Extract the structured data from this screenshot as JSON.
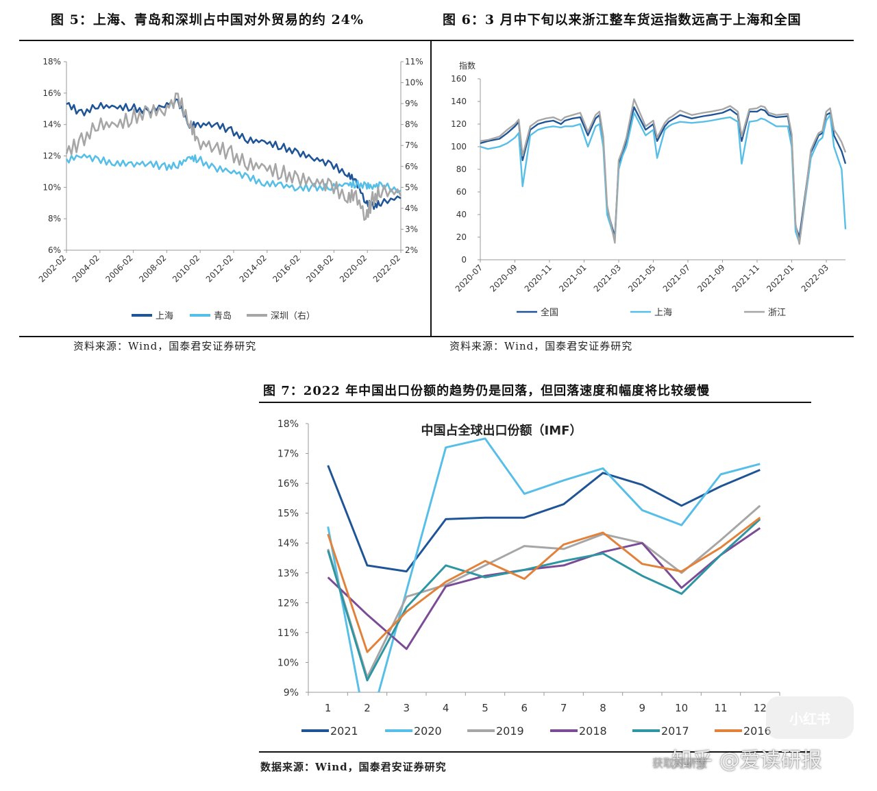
{
  "fig5": {
    "title": "图 5：上海、青岛和深圳占中国对外贸易的约 24%",
    "source": "资料来源：Wind，国泰君安证券研究"
  },
  "fig6": {
    "title": "图 6：3 月中下旬以来浙江整车货运指数远高于上海和全国",
    "source": "资料来源：Wind，国泰君安证券研究"
  },
  "fig7": {
    "title": "图 7：2022 年中国出口份额的趋势仍是回落，但回落速度和幅度将比较缓慢",
    "source": "数据来源：Wind，国泰君安证券研究"
  },
  "watermark": {
    "text": "知乎 @爱读研报",
    "badge": "小红书",
    "faint": "获取好研报"
  },
  "chart_data": [
    {
      "id": "fig5",
      "type": "line",
      "y_left_ticks": [
        "18%",
        "16%",
        "14%",
        "12%",
        "10%",
        "8%",
        "6%"
      ],
      "y_right_ticks": [
        "11%",
        "10%",
        "9%",
        "8%",
        "7%",
        "6%",
        "5%",
        "4%",
        "3%",
        "2%"
      ],
      "ylim_left": [
        6,
        18
      ],
      "ylim_right": [
        2,
        11
      ],
      "x_ticks": [
        "2002-02",
        "2004-02",
        "2006-02",
        "2008-02",
        "2010-02",
        "2012-02",
        "2014-02",
        "2016-02",
        "2018-02",
        "2020-02",
        "2022-02"
      ],
      "x": [
        2002.1,
        2003,
        2004,
        2005,
        2006,
        2007,
        2008,
        2008.8,
        2009.5,
        2010,
        2011,
        2012,
        2013,
        2014,
        2015,
        2016,
        2017,
        2018,
        2019,
        2019.5,
        2020.1,
        2020.5,
        2021,
        2022.2
      ],
      "legend_position": "bottom",
      "grid": false,
      "series": [
        {
          "name": "上海",
          "color": "#1f5596",
          "axis": "left",
          "values": [
            15.3,
            14.7,
            15.2,
            15.0,
            15.1,
            14.8,
            15.2,
            15.4,
            14.0,
            13.9,
            14.0,
            13.6,
            13.0,
            12.8,
            12.6,
            12.2,
            11.8,
            11.4,
            10.9,
            10.3,
            9.0,
            8.8,
            9.0,
            9.3
          ]
        },
        {
          "name": "青岛",
          "color": "#57bfe7",
          "axis": "left",
          "values": [
            11.7,
            12.0,
            11.7,
            11.6,
            11.4,
            11.5,
            11.3,
            11.4,
            11.8,
            11.8,
            11.2,
            11.0,
            10.6,
            10.3,
            10.1,
            9.9,
            10.0,
            10.0,
            10.1,
            10.2,
            10.1,
            10.0,
            10.1,
            9.8
          ]
        },
        {
          "name": "深圳（右）",
          "color": "#a6a6a6",
          "axis": "right",
          "values": [
            6.6,
            7.2,
            8.0,
            7.8,
            8.3,
            8.6,
            8.6,
            9.2,
            8.2,
            7.0,
            6.9,
            6.6,
            6.1,
            5.8,
            5.7,
            5.4,
            5.2,
            5.0,
            4.6,
            4.5,
            3.5,
            4.4,
            4.8,
            4.6
          ]
        }
      ]
    },
    {
      "id": "fig6",
      "type": "line",
      "ylabel": "指数",
      "y_ticks": [
        0,
        20,
        40,
        60,
        80,
        100,
        120,
        140,
        160
      ],
      "ylim": [
        0,
        160
      ],
      "x_ticks": [
        "2020-07",
        "2020-09",
        "2020-11",
        "2021-01",
        "2021-03",
        "2021-05",
        "2021-07",
        "2021-09",
        "2021-11",
        "2022-01",
        "2022-03"
      ],
      "x_weeks": [
        0,
        2,
        5,
        7,
        9,
        10,
        11,
        13,
        15,
        17,
        19,
        21,
        22,
        24,
        26,
        28,
        30,
        31,
        32,
        33,
        35,
        36,
        37,
        38,
        40,
        43,
        45,
        46,
        48,
        49,
        50,
        52,
        55,
        58,
        60,
        63,
        65,
        67,
        68,
        70,
        72,
        73,
        74,
        75,
        77,
        80,
        81,
        82,
        83,
        86,
        87,
        88,
        89,
        90,
        91,
        92,
        93,
        94,
        95
      ],
      "legend_position": "bottom",
      "grid": false,
      "series": [
        {
          "name": "全国",
          "color": "#1f5596",
          "values": [
            103,
            105,
            107,
            112,
            118,
            122,
            88,
            115,
            120,
            122,
            123,
            120,
            123,
            125,
            126,
            110,
            125,
            128,
            106,
            45,
            20,
            85,
            95,
            105,
            135,
            115,
            120,
            105,
            118,
            122,
            124,
            128,
            125,
            127,
            128,
            130,
            133,
            128,
            105,
            131,
            131,
            133,
            132,
            128,
            126,
            127,
            108,
            30,
            20,
            95,
            102,
            110,
            112,
            128,
            130,
            110,
            103,
            96,
            85
          ]
        },
        {
          "name": "上海",
          "color": "#57bfe7",
          "values": [
            100,
            98,
            100,
            103,
            108,
            112,
            65,
            110,
            115,
            117,
            118,
            117,
            118,
            118,
            120,
            100,
            118,
            120,
            100,
            40,
            18,
            80,
            92,
            100,
            130,
            110,
            115,
            90,
            115,
            118,
            120,
            122,
            121,
            122,
            123,
            125,
            126,
            122,
            85,
            122,
            123,
            125,
            124,
            122,
            118,
            118,
            100,
            25,
            15,
            90,
            98,
            105,
            108,
            123,
            128,
            100,
            90,
            80,
            27
          ]
        },
        {
          "name": "浙江",
          "color": "#a6a6a6",
          "values": [
            105,
            106,
            109,
            115,
            120,
            124,
            92,
            118,
            123,
            125,
            126,
            123,
            126,
            128,
            130,
            113,
            128,
            131,
            109,
            48,
            15,
            88,
            97,
            108,
            142,
            118,
            123,
            108,
            121,
            125,
            127,
            132,
            128,
            130,
            131,
            133,
            136,
            131,
            109,
            133,
            134,
            136,
            135,
            130,
            128,
            129,
            111,
            32,
            14,
            97,
            105,
            112,
            114,
            131,
            134,
            115,
            110,
            104,
            95
          ]
        }
      ]
    },
    {
      "id": "fig7",
      "type": "line",
      "title": "中国占全球出口份额（IMF）",
      "y_ticks": [
        "18%",
        "17%",
        "16%",
        "15%",
        "14%",
        "13%",
        "12%",
        "11%",
        "10%",
        "9%"
      ],
      "ylim": [
        9,
        18
      ],
      "categories": [
        "1",
        "2",
        "3",
        "4",
        "5",
        "6",
        "7",
        "8",
        "9",
        "10",
        "11",
        "12"
      ],
      "legend_position": "bottom",
      "grid": false,
      "series": [
        {
          "name": "2021",
          "color": "#1f5596",
          "values": [
            16.6,
            13.25,
            13.05,
            14.8,
            14.85,
            14.85,
            15.3,
            16.35,
            15.95,
            15.25,
            15.9,
            16.45
          ]
        },
        {
          "name": "2020",
          "color": "#57bfe7",
          "values": [
            14.55,
            7.6,
            12.4,
            17.2,
            17.5,
            15.65,
            16.1,
            16.5,
            15.1,
            14.6,
            16.3,
            16.65
          ]
        },
        {
          "name": "2019",
          "color": "#a6a6a6",
          "values": [
            13.8,
            9.5,
            12.2,
            12.6,
            13.25,
            13.9,
            13.8,
            14.3,
            14.0,
            13.0,
            14.1,
            15.25
          ]
        },
        {
          "name": "2018",
          "color": "#7a4c96",
          "values": [
            12.85,
            11.6,
            10.45,
            12.55,
            12.9,
            13.1,
            13.25,
            13.7,
            14.0,
            12.5,
            13.6,
            14.5
          ]
        },
        {
          "name": "2017",
          "color": "#2e95a3",
          "values": [
            13.75,
            9.4,
            11.85,
            13.25,
            12.85,
            13.1,
            13.4,
            13.65,
            12.9,
            12.3,
            13.6,
            14.8
          ]
        },
        {
          "name": "2016",
          "color": "#e2813a",
          "values": [
            14.3,
            10.35,
            11.7,
            12.7,
            13.4,
            12.8,
            13.95,
            14.35,
            13.3,
            13.05,
            13.85,
            14.85
          ]
        }
      ]
    }
  ]
}
